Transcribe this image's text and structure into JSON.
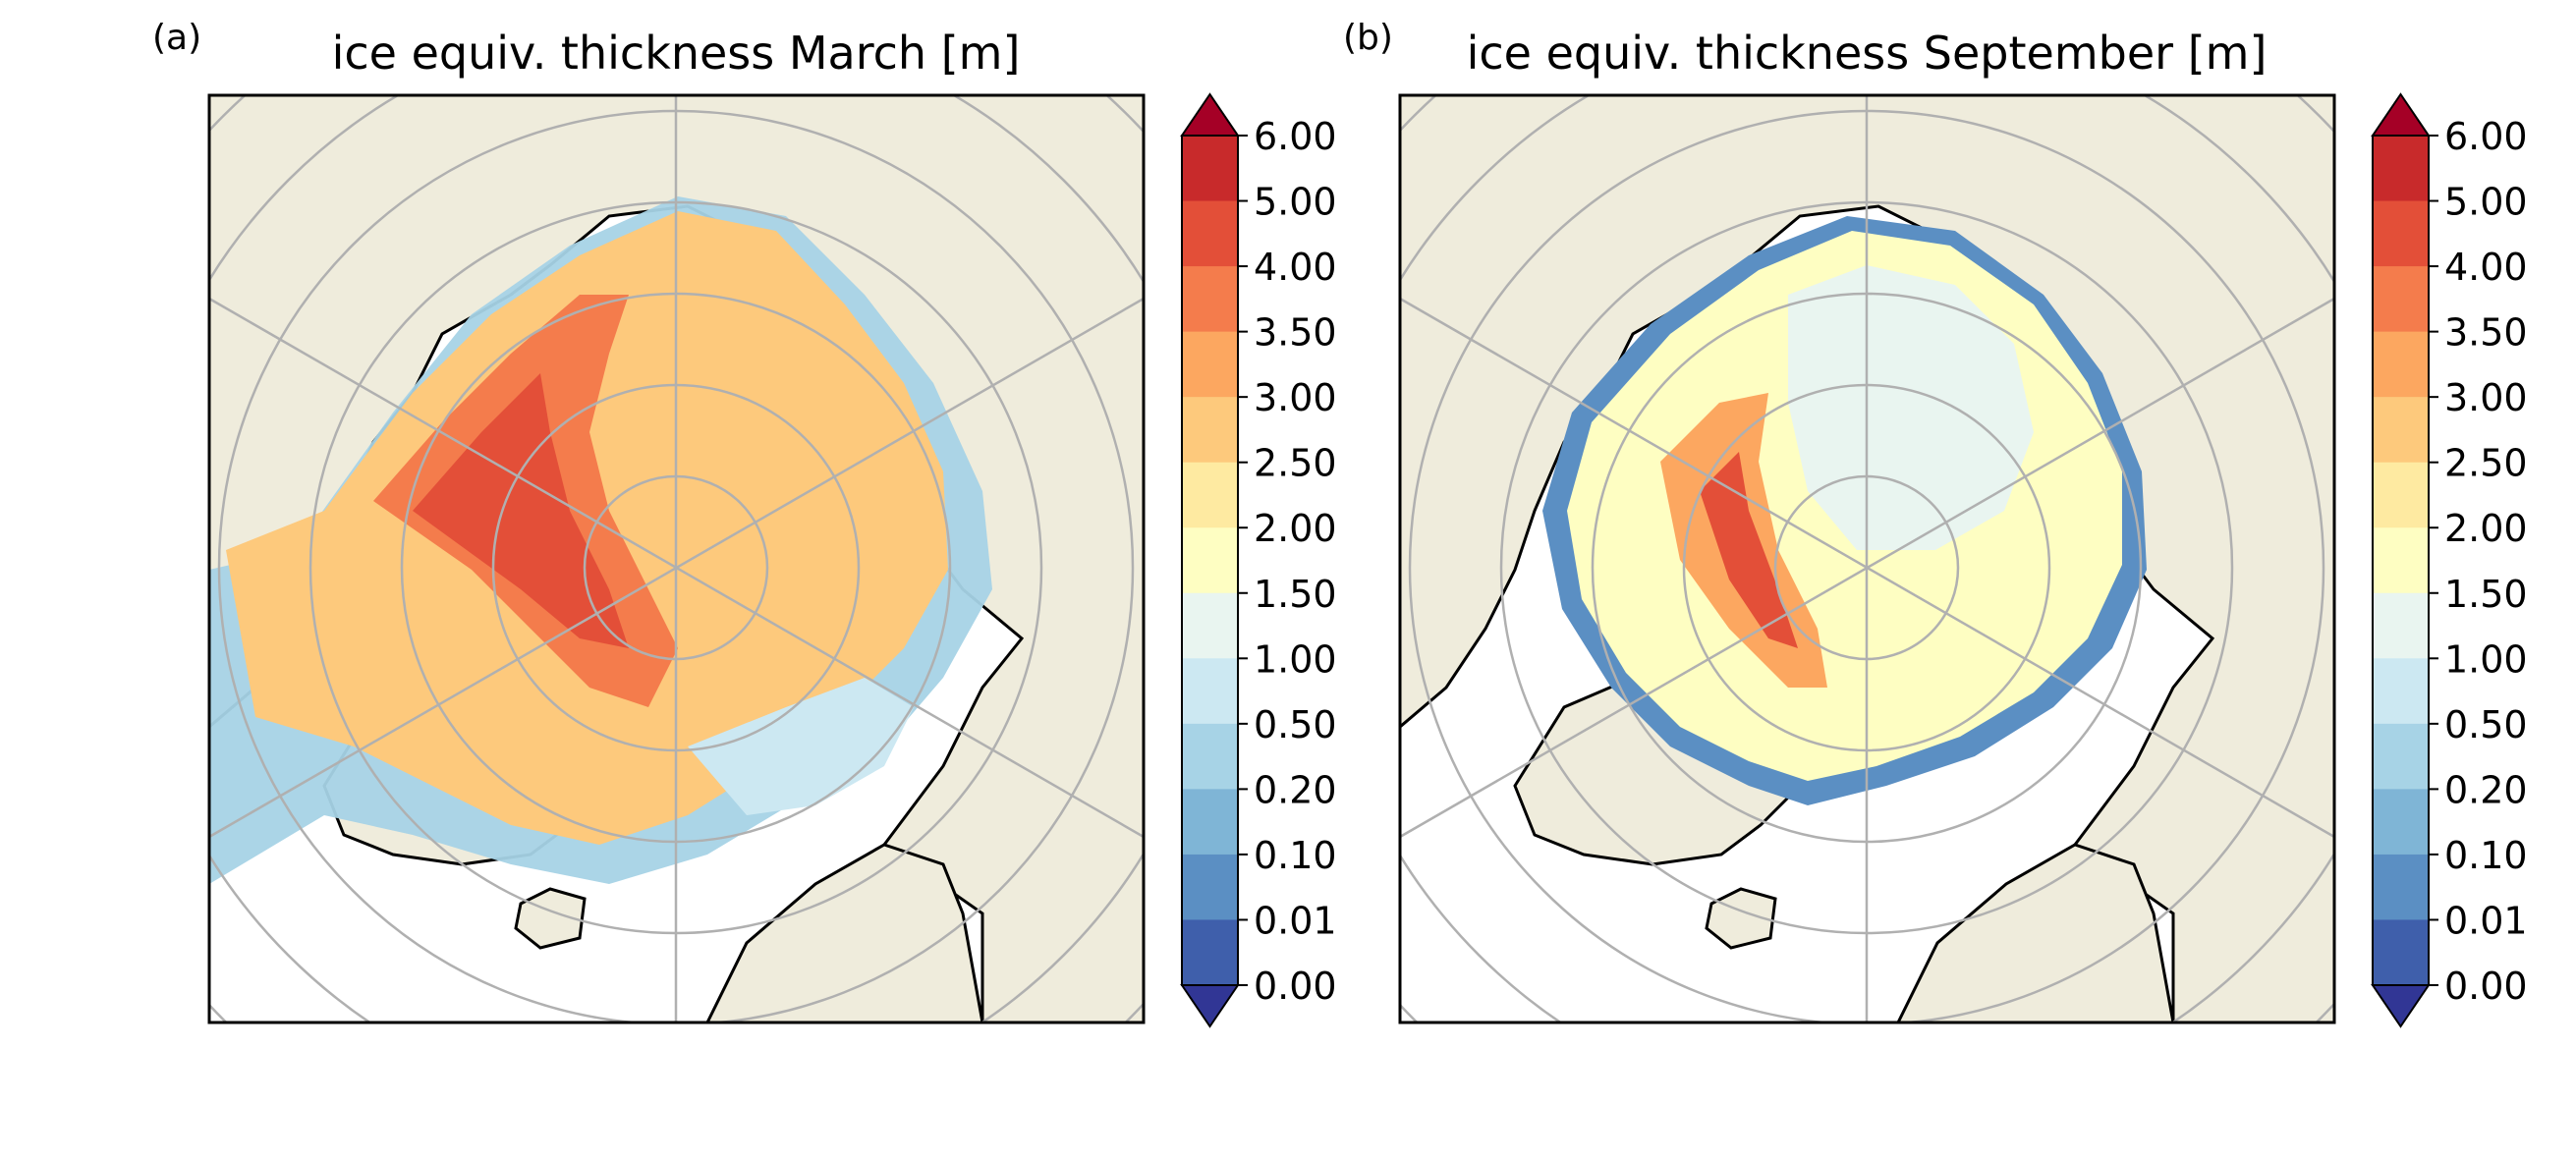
{
  "figure": {
    "panels": [
      {
        "letter": "(a)",
        "title": "ice equiv. thickness March [m]",
        "month": "March"
      },
      {
        "letter": "(b)",
        "title": "ice equiv. thickness September [m]",
        "month": "September"
      }
    ],
    "colorbar": {
      "levels": [
        "6.00",
        "5.00",
        "4.00",
        "3.50",
        "3.00",
        "2.50",
        "2.00",
        "1.50",
        "1.00",
        "0.50",
        "0.20",
        "0.10",
        "0.01",
        "0.00"
      ],
      "bin_colors": [
        "#c82a2b",
        "#e34f38",
        "#f47c4c",
        "#fca760",
        "#fdc97c",
        "#feeaa1",
        "#fefec2",
        "#e9f5f0",
        "#cce8f2",
        "#a7d3e6",
        "#7fb5d6",
        "#5b8fc3",
        "#3f5fab"
      ],
      "extend_max_color": "#a50026",
      "extend_min_color": "#313695"
    },
    "colors": {
      "land": "#efecdc",
      "ocean": "#ffffff",
      "graticule": "#b0b0b0",
      "coastline": "#000000"
    }
  }
}
